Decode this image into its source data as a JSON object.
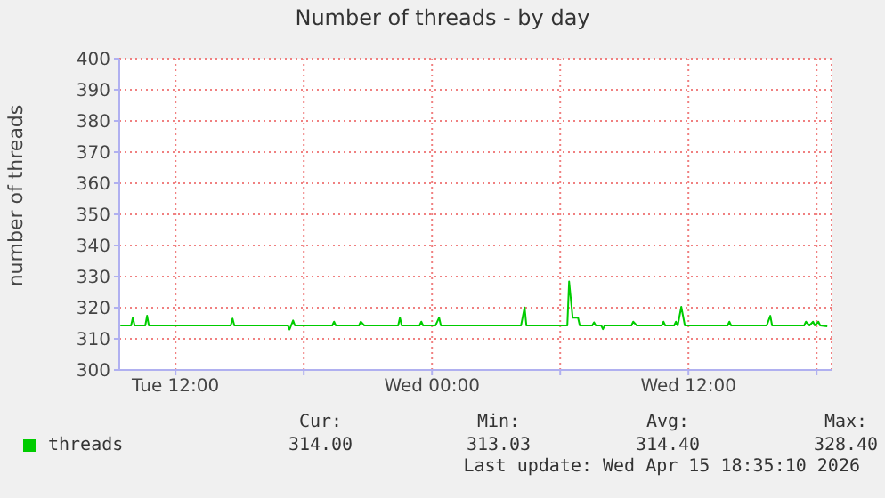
{
  "chart_data": {
    "type": "line",
    "title": "Number of threads - by day",
    "ylabel": "number of threads",
    "x": [
      "2026-04-14T09:25",
      "2026-04-14T09:55",
      "2026-04-14T10:00",
      "2026-04-14T10:05",
      "2026-04-14T10:35",
      "2026-04-14T10:40",
      "2026-04-14T10:45",
      "2026-04-14T14:35",
      "2026-04-14T14:40",
      "2026-04-14T14:45",
      "2026-04-14T17:15",
      "2026-04-14T17:20",
      "2026-04-14T17:30",
      "2026-04-14T17:35",
      "2026-04-14T19:20",
      "2026-04-14T19:25",
      "2026-04-14T19:30",
      "2026-04-14T20:35",
      "2026-04-14T20:40",
      "2026-04-14T20:50",
      "2026-04-14T22:25",
      "2026-04-14T22:30",
      "2026-04-14T22:35",
      "2026-04-14T23:25",
      "2026-04-14T23:30",
      "2026-04-14T23:35",
      "2026-04-15T00:10",
      "2026-04-15T00:20",
      "2026-04-15T00:25",
      "2026-04-15T04:10",
      "2026-04-15T04:20",
      "2026-04-15T04:25",
      "2026-04-15T06:20",
      "2026-04-15T06:25",
      "2026-04-15T06:35",
      "2026-04-15T06:50",
      "2026-04-15T06:55",
      "2026-04-15T07:30",
      "2026-04-15T07:35",
      "2026-04-15T07:40",
      "2026-04-15T07:55",
      "2026-04-15T08:00",
      "2026-04-15T08:05",
      "2026-04-15T09:20",
      "2026-04-15T09:25",
      "2026-04-15T09:35",
      "2026-04-15T10:45",
      "2026-04-15T10:50",
      "2026-04-15T10:55",
      "2026-04-15T11:20",
      "2026-04-15T11:25",
      "2026-04-15T11:30",
      "2026-04-15T11:40",
      "2026-04-15T11:50",
      "2026-04-15T13:50",
      "2026-04-15T13:55",
      "2026-04-15T14:00",
      "2026-04-15T15:40",
      "2026-04-15T15:50",
      "2026-04-15T15:55",
      "2026-04-15T17:25",
      "2026-04-15T17:30",
      "2026-04-15T17:40",
      "2026-04-15T17:50",
      "2026-04-15T17:55",
      "2026-04-15T18:05",
      "2026-04-15T18:10",
      "2026-04-15T18:30"
    ],
    "series": [
      {
        "name": "threads",
        "color": "#00cc00",
        "values": [
          314.3,
          314.3,
          316.8,
          314.3,
          314.3,
          317.4,
          314.3,
          314.3,
          316.5,
          314.3,
          314.3,
          313.0,
          315.9,
          314.3,
          314.3,
          315.5,
          314.3,
          314.3,
          315.5,
          314.3,
          314.3,
          316.8,
          314.3,
          314.3,
          315.5,
          314.3,
          314.3,
          316.8,
          314.3,
          314.3,
          320.1,
          314.3,
          314.3,
          328.4,
          316.8,
          316.8,
          314.3,
          314.3,
          315.3,
          314.3,
          314.3,
          313.1,
          314.3,
          314.3,
          315.5,
          314.3,
          314.3,
          315.5,
          314.3,
          314.3,
          315.5,
          314.3,
          320.3,
          314.3,
          314.3,
          315.5,
          314.3,
          314.3,
          317.4,
          314.3,
          314.3,
          315.5,
          314.3,
          315.5,
          314.3,
          315.5,
          314.3,
          314.0
        ]
      }
    ],
    "xlim": [
      "2026-04-14T09:22",
      "2026-04-15T18:42"
    ],
    "xticks": [
      {
        "value": "2026-04-14T12:00",
        "label": "Tue 12:00"
      },
      {
        "value": "2026-04-14T18:00",
        "label": null
      },
      {
        "value": "2026-04-15T00:00",
        "label": "Wed 00:00"
      },
      {
        "value": "2026-04-15T06:00",
        "label": null
      },
      {
        "value": "2026-04-15T12:00",
        "label": "Wed 12:00"
      },
      {
        "value": "2026-04-15T18:00",
        "label": null
      }
    ],
    "ylim": [
      300,
      400
    ],
    "yticks": [
      300,
      310,
      320,
      330,
      340,
      350,
      360,
      370,
      380,
      390,
      400
    ],
    "grid": true,
    "legend": "bottom",
    "annotations": [
      "Cur:",
      "Min:",
      "Avg:",
      "Max:",
      "314.00",
      "313.03",
      "314.40",
      "328.40",
      "Last update: Wed Apr 15 18:35:10 2026"
    ]
  }
}
